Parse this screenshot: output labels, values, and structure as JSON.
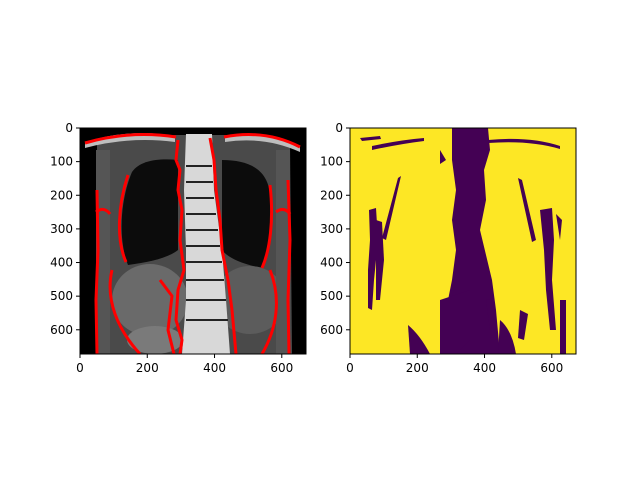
{
  "chart_data": [
    {
      "type": "heatmap",
      "content": "coronal MRI slice (grayscale) with red segmentation contour overlay",
      "x_ticks": [
        "0",
        "200",
        "400",
        "600"
      ],
      "y_ticks": [
        "0",
        "100",
        "200",
        "300",
        "400",
        "500",
        "600"
      ],
      "x_tick_values": [
        0,
        200,
        400,
        600
      ],
      "y_tick_values": [
        0,
        100,
        200,
        300,
        400,
        500,
        600
      ],
      "xlim": [
        0,
        672
      ],
      "ylim": [
        672,
        0
      ],
      "colors": {
        "background": "#000000",
        "tissue": "#8a8a8a",
        "bone": "#e6e6e6",
        "contour": "#ff0000"
      }
    },
    {
      "type": "heatmap",
      "content": "binary mask rendered with viridis colormap (0 = purple, 1 = yellow)",
      "x_ticks": [
        "0",
        "200",
        "400",
        "600"
      ],
      "y_ticks": [
        "0",
        "100",
        "200",
        "300",
        "400",
        "500",
        "600"
      ],
      "x_tick_values": [
        0,
        200,
        400,
        600
      ],
      "y_tick_values": [
        0,
        100,
        200,
        300,
        400,
        500,
        600
      ],
      "xlim": [
        0,
        672
      ],
      "ylim": [
        672,
        0
      ],
      "colors": {
        "low": "#440154",
        "high": "#fde725"
      }
    }
  ]
}
